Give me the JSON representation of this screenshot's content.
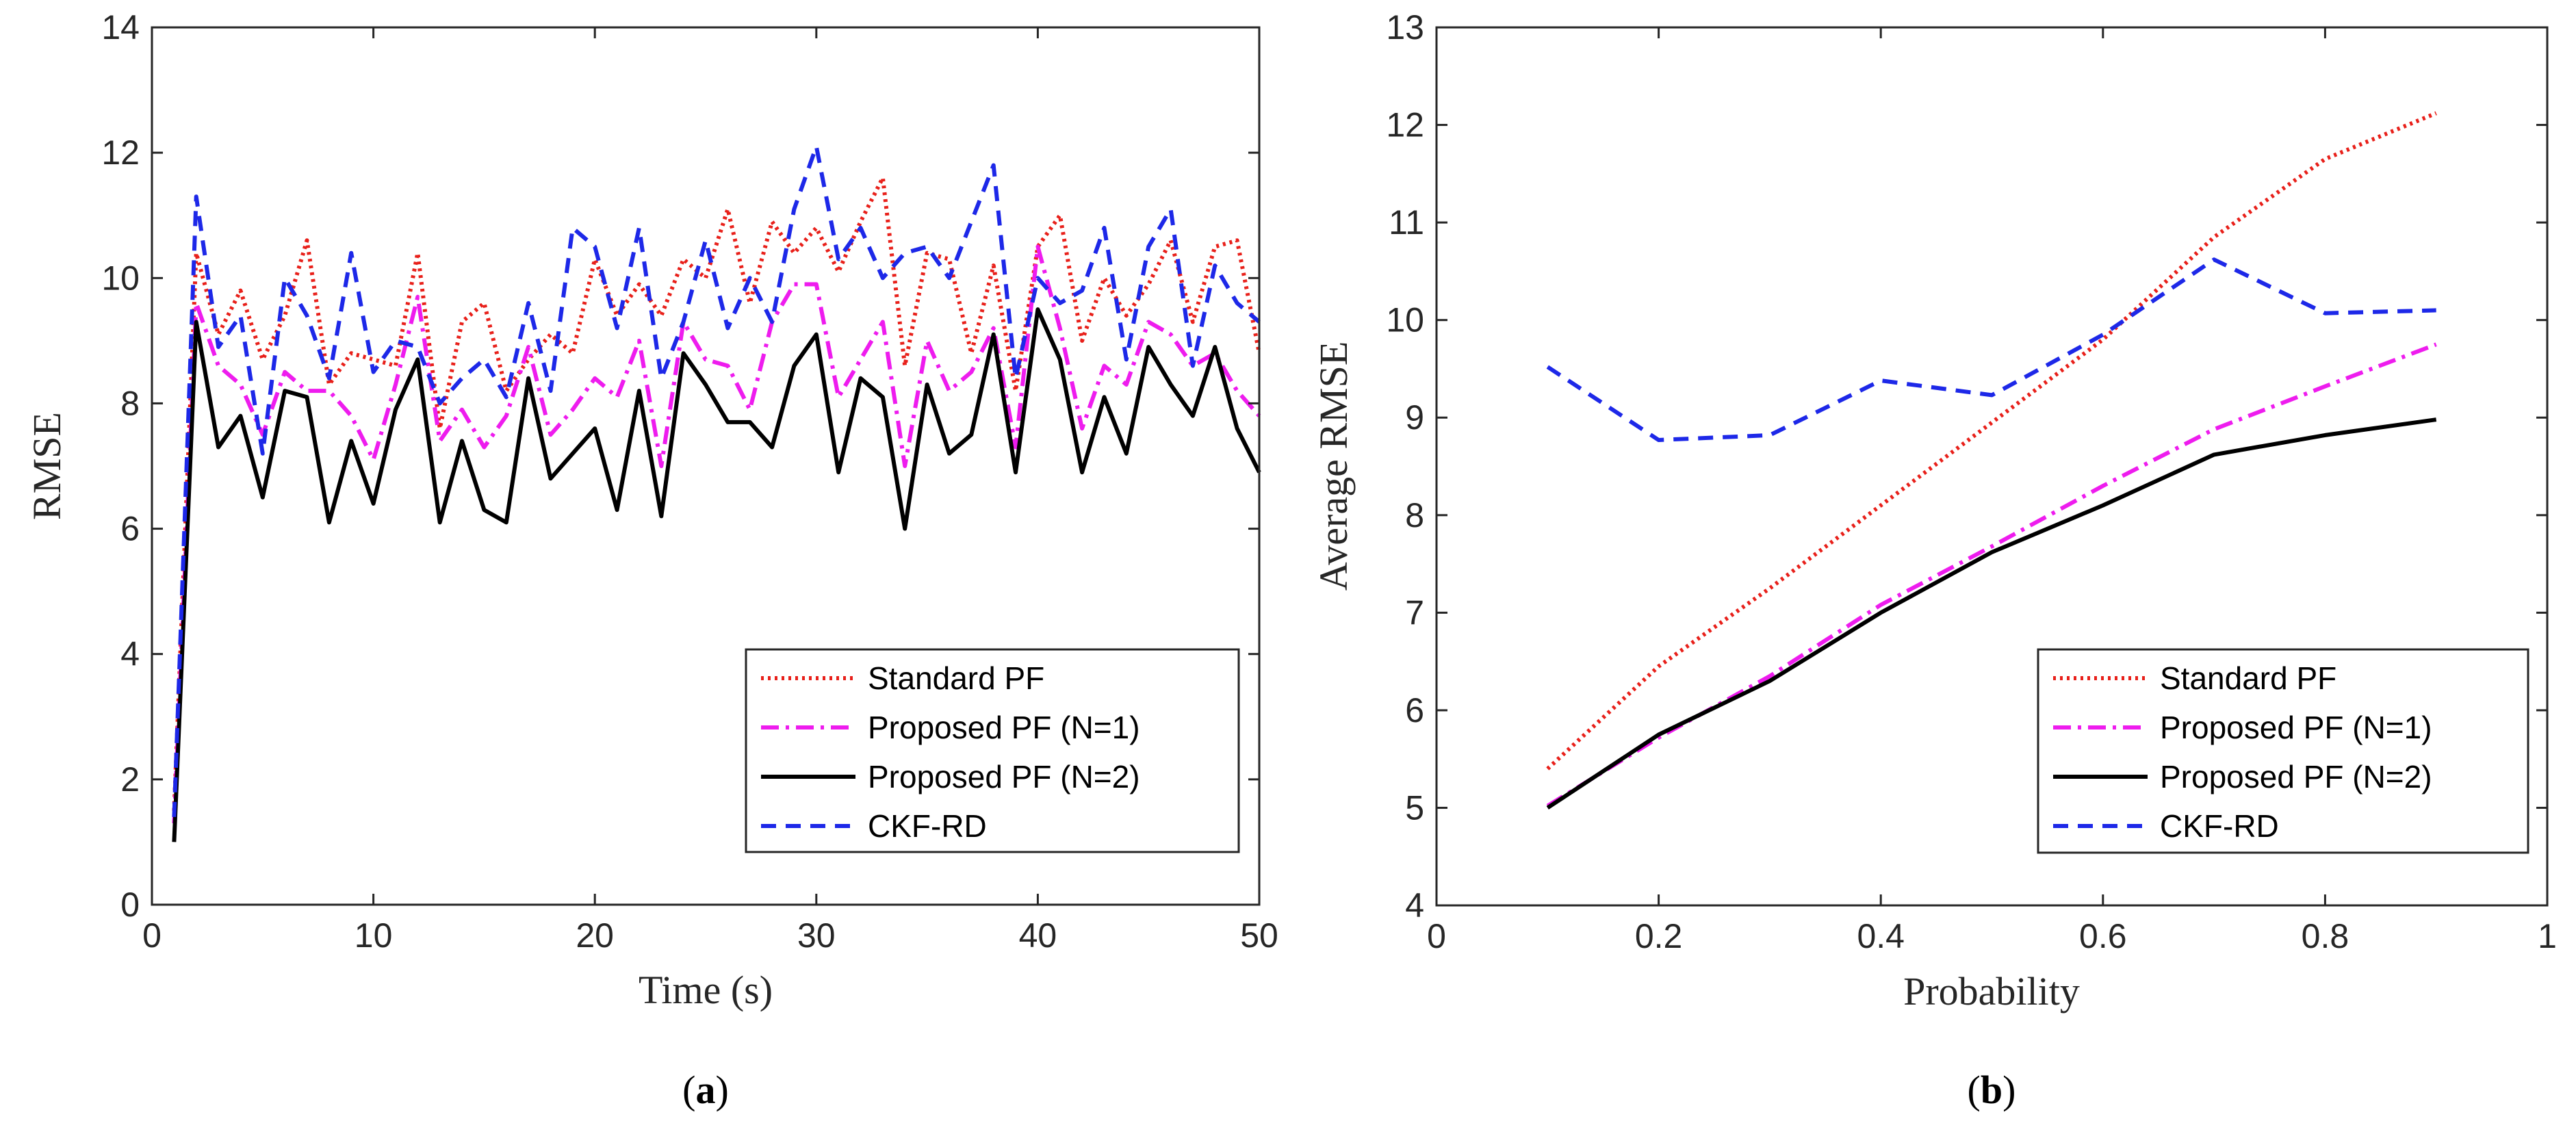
{
  "chart_data": [
    {
      "type": "line",
      "caption_open": "(",
      "caption_letter": "a",
      "caption_close": ")",
      "xlabel": "Time (s)",
      "ylabel": "RMSE",
      "xlim": [
        0,
        50
      ],
      "ylim": [
        0,
        14
      ],
      "xticks": [
        0,
        10,
        20,
        30,
        40,
        50
      ],
      "yticks": [
        0,
        2,
        4,
        6,
        8,
        10,
        12,
        14
      ],
      "legend_position": "bottom-right",
      "x": [
        1,
        2,
        3,
        4,
        5,
        6,
        7,
        8,
        9,
        10,
        11,
        12,
        13,
        14,
        15,
        16,
        17,
        18,
        19,
        20,
        21,
        22,
        23,
        24,
        25,
        26,
        27,
        28,
        29,
        30,
        31,
        32,
        33,
        34,
        35,
        36,
        37,
        38,
        39,
        40,
        41,
        42,
        43,
        44,
        45,
        46,
        47,
        48,
        49,
        50
      ],
      "series": [
        {
          "name": "Standard PF",
          "color": "#e8201a",
          "dash": "dotted",
          "values": [
            1.5,
            10.4,
            9.1,
            9.8,
            8.7,
            9.4,
            10.6,
            8.3,
            8.8,
            8.7,
            8.6,
            10.4,
            7.6,
            9.3,
            9.6,
            8.2,
            8.7,
            9.1,
            8.8,
            10.3,
            9.4,
            9.9,
            9.4,
            10.3,
            10.0,
            11.1,
            9.6,
            10.9,
            10.4,
            10.8,
            10.1,
            10.9,
            11.6,
            8.6,
            10.4,
            10.3,
            8.8,
            10.2,
            8.2,
            10.5,
            11.0,
            9.0,
            10.0,
            9.4,
            9.9,
            10.6,
            9.3,
            10.5,
            10.6,
            8.8
          ]
        },
        {
          "name": "Proposed PF (N=1)",
          "color": "#ee1cee",
          "dash": "dashdot",
          "values": [
            1.3,
            9.6,
            8.6,
            8.3,
            7.5,
            8.5,
            8.2,
            8.2,
            7.8,
            7.1,
            8.3,
            9.7,
            7.4,
            7.9,
            7.3,
            7.8,
            8.9,
            7.5,
            7.9,
            8.4,
            8.1,
            9.0,
            7.0,
            9.3,
            8.7,
            8.6,
            7.9,
            9.3,
            9.9,
            9.9,
            8.1,
            8.7,
            9.3,
            7.0,
            9.0,
            8.2,
            8.5,
            9.2,
            7.3,
            10.5,
            9.2,
            7.6,
            8.6,
            8.3,
            9.3,
            9.1,
            8.6,
            8.8,
            8.2,
            7.8
          ]
        },
        {
          "name": "Proposed PF (N=2)",
          "color": "#000000",
          "dash": "solid",
          "values": [
            1.0,
            9.3,
            7.3,
            7.8,
            6.5,
            8.2,
            8.1,
            6.1,
            7.4,
            6.4,
            7.9,
            8.7,
            6.1,
            7.4,
            6.3,
            6.1,
            8.4,
            6.8,
            7.2,
            7.6,
            6.3,
            8.2,
            6.2,
            8.8,
            8.3,
            7.7,
            7.7,
            7.3,
            8.6,
            9.1,
            6.9,
            8.4,
            8.1,
            6.0,
            8.3,
            7.2,
            7.5,
            9.1,
            6.9,
            9.5,
            8.7,
            6.9,
            8.1,
            7.2,
            8.9,
            8.3,
            7.8,
            8.9,
            7.6,
            6.9
          ]
        },
        {
          "name": "CKF-RD",
          "color": "#1d28e8",
          "dash": "dashed",
          "values": [
            1.4,
            11.3,
            8.9,
            9.4,
            7.2,
            10.0,
            9.4,
            8.4,
            10.4,
            8.5,
            9.0,
            8.9,
            8.0,
            8.4,
            8.7,
            8.1,
            9.6,
            8.2,
            10.8,
            10.5,
            9.2,
            10.8,
            8.4,
            9.3,
            10.6,
            9.2,
            10.0,
            9.3,
            11.1,
            12.1,
            10.3,
            10.8,
            10.0,
            10.4,
            10.5,
            10.0,
            10.9,
            11.8,
            8.4,
            10.0,
            9.6,
            9.8,
            10.8,
            8.7,
            10.5,
            11.1,
            8.6,
            10.2,
            9.6,
            9.3
          ]
        }
      ]
    },
    {
      "type": "line",
      "caption_open": "(",
      "caption_letter": "b",
      "caption_close": ")",
      "xlabel": "Probability",
      "ylabel": "Average RMSE",
      "xlim": [
        0,
        1
      ],
      "ylim": [
        4,
        13
      ],
      "xticks": [
        0,
        0.2,
        0.4,
        0.6,
        0.8,
        1
      ],
      "xtick_labels": [
        "0",
        "0.2",
        "0.4",
        "0.6",
        "0.8",
        "1"
      ],
      "yticks": [
        4,
        5,
        6,
        7,
        8,
        9,
        10,
        11,
        12,
        13
      ],
      "legend_position": "bottom-right",
      "x": [
        0.1,
        0.2,
        0.3,
        0.4,
        0.5,
        0.6,
        0.7,
        0.8,
        0.9
      ],
      "series": [
        {
          "name": "Standard PF",
          "color": "#e8201a",
          "dash": "dotted",
          "values": [
            5.4,
            6.45,
            7.25,
            8.1,
            8.95,
            9.8,
            10.85,
            11.65,
            12.12
          ]
        },
        {
          "name": "Proposed PF (N=1)",
          "color": "#ee1cee",
          "dash": "dashdot",
          "values": [
            5.02,
            5.72,
            6.35,
            7.08,
            7.68,
            8.3,
            8.88,
            9.32,
            9.75
          ]
        },
        {
          "name": "Proposed PF (N=2)",
          "color": "#000000",
          "dash": "solid",
          "values": [
            5.0,
            5.75,
            6.3,
            7.0,
            7.62,
            8.1,
            8.62,
            8.82,
            8.98
          ]
        },
        {
          "name": "CKF-RD",
          "color": "#1d28e8",
          "dash": "dashed",
          "values": [
            9.52,
            8.77,
            8.82,
            9.38,
            9.23,
            9.85,
            10.62,
            10.07,
            10.1
          ]
        }
      ]
    }
  ]
}
